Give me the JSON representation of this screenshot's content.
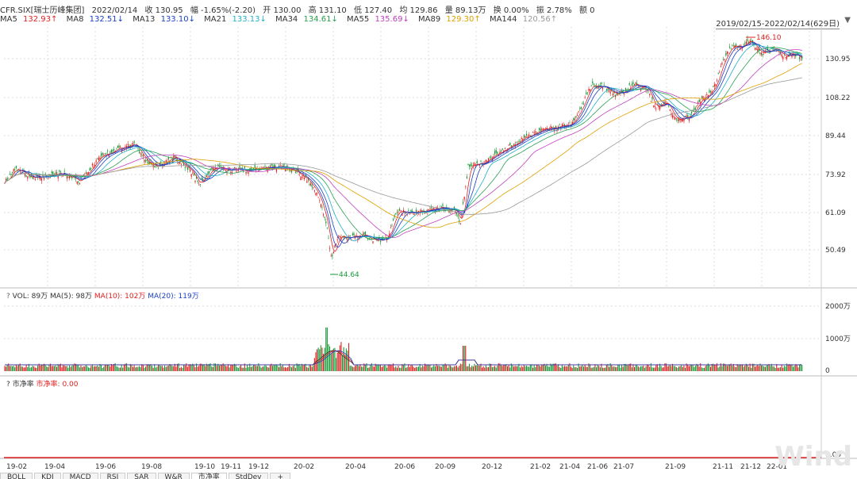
{
  "info": {
    "ticker": "CFR.SIX[瑞士历峰集团]",
    "date": "2022/02/14",
    "close": "收 130.95",
    "change": "幅 -1.65%(-2.20)",
    "open": "开 130.00",
    "high": "高 131.10",
    "low": "低 127.40",
    "avg": "均 129.86",
    "volume": "量 89.13万",
    "turnover": "换 0.00%",
    "amplitude": "振 2.78%",
    "amount": "额 0"
  },
  "ma": [
    {
      "label": "MA5",
      "value": "132.93↑",
      "color": "#333333",
      "vcolor": "#e02020"
    },
    {
      "label": "MA8",
      "value": "132.51↓",
      "color": "#333333",
      "vcolor": "#1a3fc4"
    },
    {
      "label": "MA13",
      "value": "133.10↓",
      "color": "#333333",
      "vcolor": "#1a3fc4"
    },
    {
      "label": "MA21",
      "value": "133.13↓",
      "color": "#333333",
      "vcolor": "#20b0c8"
    },
    {
      "label": "MA34",
      "value": "134.61↓",
      "color": "#333333",
      "vcolor": "#2aa050"
    },
    {
      "label": "MA55",
      "value": "135.69↓",
      "color": "#333333",
      "vcolor": "#c040c0"
    },
    {
      "label": "MA89",
      "value": "129.30↑",
      "color": "#333333",
      "vcolor": "#e0a000"
    },
    {
      "label": "MA144",
      "value": "120.56↑",
      "color": "#333333",
      "vcolor": "#999999"
    }
  ],
  "date_range": "2019/02/15-2022/02/14(629日)",
  "price_axis": [
    "130.95",
    "108.22",
    "89.44",
    "73.92",
    "61.09",
    "50.49"
  ],
  "annotations": {
    "high": "146.10",
    "low": "44.64"
  },
  "volume_panel": {
    "label": "VOL: 89万",
    "ma5": "MA(5): 98万",
    "ma10": "MA(10): 102万",
    "ma20": "MA(20): 119万",
    "axis": [
      "2000万",
      "1000万",
      "0"
    ]
  },
  "pb_panel": {
    "title": "市净率",
    "value": "市净率: 0.00",
    "axis": "0.00"
  },
  "x_axis": [
    "19-02",
    "19-04",
    "19-06",
    "19-08",
    "19-10",
    "19-11",
    "19-12",
    "20-02",
    "20-04",
    "20-06",
    "20-09",
    "20-12",
    "21-02",
    "21-04",
    "21-06",
    "21-07",
    "21-09",
    "21-11",
    "21-12",
    "22-01"
  ],
  "tabs": [
    "BOLL",
    "KDJ",
    "MACD",
    "RSI",
    "SAR",
    "W&R",
    "市净率",
    "StdDev",
    "+"
  ],
  "watermark": "Wind",
  "colors": {
    "up": "#e02020",
    "down": "#1a9a3a",
    "grid": "#d8d8d8"
  }
}
